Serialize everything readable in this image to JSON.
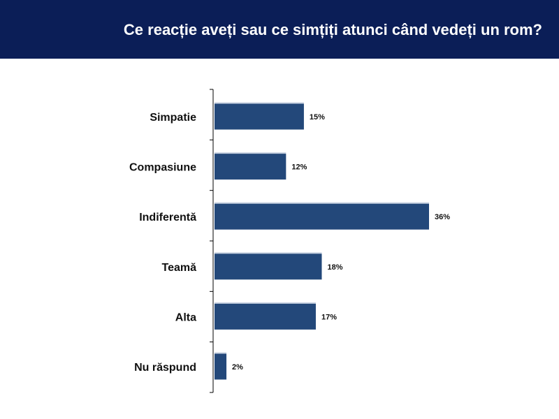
{
  "header": {
    "title": "Ce reacție aveți sau ce simțiți atunci când vedeți un rom?"
  },
  "colors": {
    "header_bg": "#0b1e57",
    "bar_fill": "#23487a",
    "bar_highlight": "#c9d3e2",
    "axis": "#000000"
  },
  "chart_data": {
    "type": "bar",
    "orientation": "horizontal",
    "title": "Ce reacție aveți sau ce simțiți atunci când vedeți un rom?",
    "categories": [
      "Simpatie",
      "Compasiune",
      "Indiferentă",
      "Teamă",
      "Alta",
      "Nu răspund"
    ],
    "values": [
      15,
      12,
      36,
      18,
      17,
      2
    ],
    "value_labels": [
      "15%",
      "12%",
      "36%",
      "18%",
      "17%",
      "2%"
    ],
    "xlabel": "",
    "ylabel": "",
    "xlim": [
      0,
      36
    ],
    "grid": false,
    "legend": "none"
  }
}
